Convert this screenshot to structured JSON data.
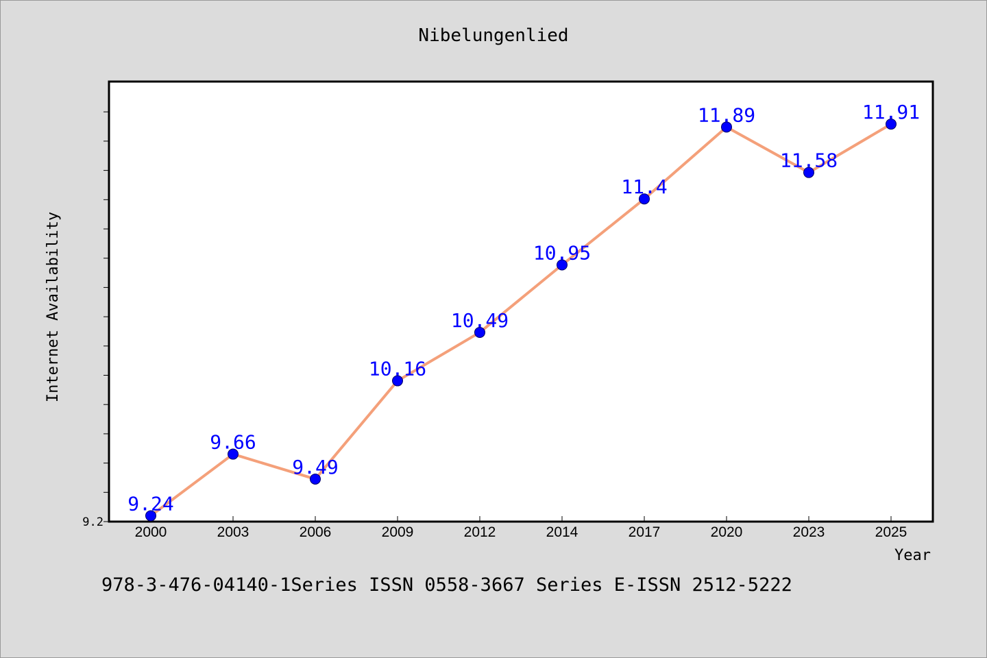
{
  "chart_data": {
    "type": "line",
    "title": "Nibelungenlied",
    "xlabel": "Year",
    "ylabel": "Internet Availability",
    "categories": [
      "2000",
      "2003",
      "2006",
      "2009",
      "2012",
      "2014",
      "2017",
      "2020",
      "2023",
      "2025"
    ],
    "series": [
      {
        "values": [
          9.24,
          9.66,
          9.49,
          10.16,
          10.49,
          10.95,
          11.4,
          11.89,
          11.58,
          11.91
        ],
        "data_labels": [
          "9.24",
          "9.66",
          "9.49",
          "10.16",
          "10.49",
          "10.95",
          "11.4",
          "11.89",
          "11.58",
          "11.91"
        ],
        "line_color": "#f4a07a",
        "marker_color": "#0000ff",
        "label_color": "#0000ff"
      }
    ],
    "ylim": [
      9.2,
      12.2
    ],
    "y_tick_labels": [
      "9.2"
    ],
    "grid": false,
    "legend": "none",
    "footer": "978-3-476-04140-1Series ISSN 0558-3667 Series E-ISSN 2512-5222",
    "colors": {
      "background": "#dcdcdc",
      "plot_background": "#ffffff",
      "axis": "#000000"
    }
  }
}
